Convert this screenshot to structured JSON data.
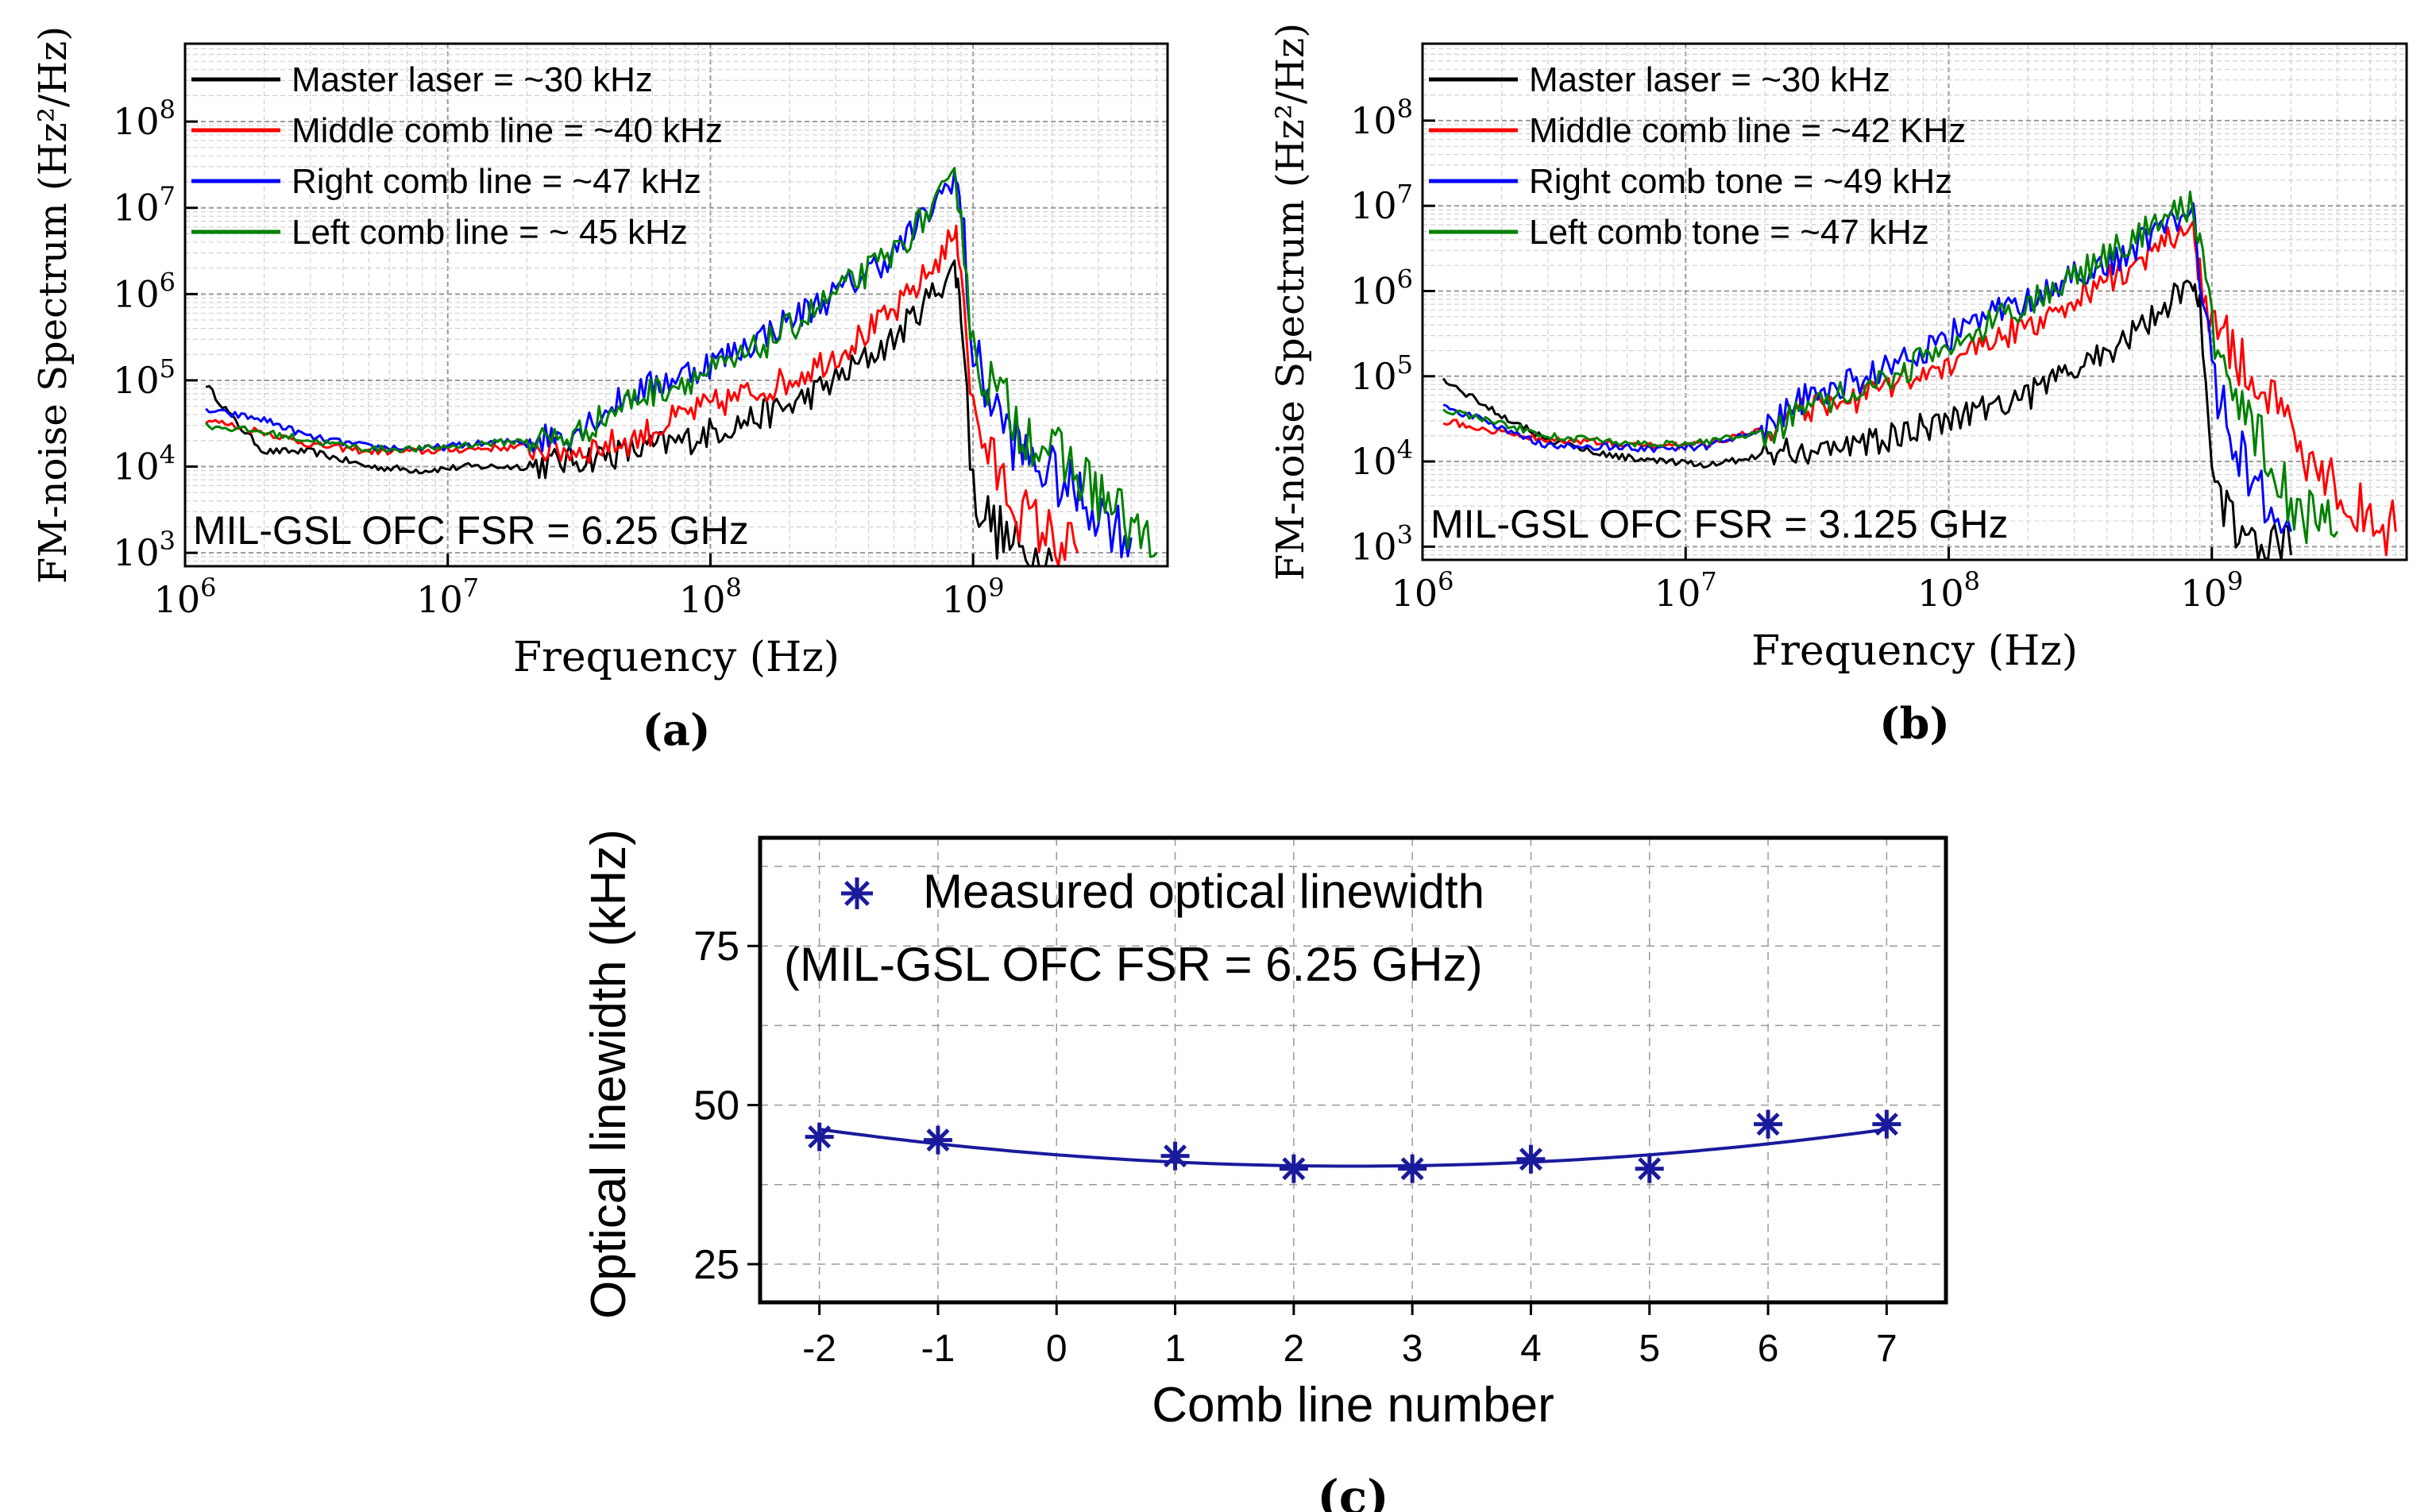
{
  "chart_data": [
    {
      "panel_label": "(a)",
      "type": "line",
      "x_scale": "log",
      "y_scale": "log",
      "xlabel": "Frequency (Hz)",
      "ylabel": "FM-noise Spectrum (Hz²/Hz)",
      "xlim": [
        1000000,
        5500000000
      ],
      "ylim": [
        700,
        800000000
      ],
      "x_ticks": [
        1000000,
        10000000,
        100000000,
        1000000000
      ],
      "x_tick_labels": [
        {
          "base": "10",
          "exp": "6"
        },
        {
          "base": "10",
          "exp": "7"
        },
        {
          "base": "10",
          "exp": "8"
        },
        {
          "base": "10",
          "exp": "9"
        }
      ],
      "y_ticks": [
        1000,
        10000,
        100000,
        1000000,
        10000000,
        100000000
      ],
      "y_tick_labels": [
        {
          "base": "10",
          "exp": "3"
        },
        {
          "base": "10",
          "exp": "4"
        },
        {
          "base": "10",
          "exp": "5"
        },
        {
          "base": "10",
          "exp": "6"
        },
        {
          "base": "10",
          "exp": "7"
        },
        {
          "base": "10",
          "exp": "8"
        }
      ],
      "grid": true,
      "legend_position": "top-left",
      "annotation": "MIL-GSL OFC  FSR = 6.25 GHz",
      "series": [
        {
          "name": "Master laser = ~30 kHz",
          "color": "#000000",
          "x": [
            1200000,
            1600000,
            2000000,
            3000000,
            5000000,
            8000000,
            12000000,
            20000000,
            30000000,
            50000000,
            80000000,
            120000000,
            200000000,
            300000000,
            500000000,
            700000000,
            850000000,
            900000000,
            1000000000,
            1200000000,
            1500000000,
            2000000000
          ],
          "y": [
            90000,
            30000,
            15000,
            15000,
            10000,
            9000,
            10000,
            10000,
            12000,
            15000,
            20000,
            30000,
            50000,
            100000,
            300000,
            1000000,
            2000000,
            800000,
            5000,
            2000,
            1000,
            800
          ]
        },
        {
          "name": "Middle comb line = ~40 kHz",
          "color": "#ff0000",
          "x": [
            1200000,
            2000000,
            3000000,
            5000000,
            8000000,
            12000000,
            20000000,
            30000000,
            50000000,
            80000000,
            120000000,
            200000000,
            300000000,
            500000000,
            700000000,
            850000000,
            900000000,
            1000000000,
            1200000000,
            1500000000,
            2000000000,
            2500000000
          ],
          "y": [
            35000,
            25000,
            18000,
            15000,
            15000,
            16000,
            17000,
            15000,
            20000,
            40000,
            60000,
            100000,
            200000,
            600000,
            2000000,
            5000000,
            2500000,
            40000,
            10000,
            3000,
            1500,
            1000
          ]
        },
        {
          "name": "Right comb line = ~47 kHz",
          "color": "#0000ff",
          "x": [
            1200000,
            2000000,
            3000000,
            5000000,
            8000000,
            12000000,
            20000000,
            30000000,
            50000000,
            80000000,
            120000000,
            200000000,
            300000000,
            500000000,
            700000000,
            850000000,
            900000000,
            1000000000,
            1200000000,
            1500000000,
            2000000000,
            3000000000,
            4000000000
          ],
          "y": [
            45000,
            35000,
            22000,
            17000,
            16000,
            18000,
            20000,
            25000,
            70000,
            120000,
            200000,
            500000,
            1000000,
            3000000,
            10000000,
            25000000,
            10000000,
            200000,
            50000,
            15000,
            8000,
            3000,
            1500
          ]
        },
        {
          "name": "Left comb line = ~ 45 kHz",
          "color": "#008000",
          "x": [
            1200000,
            2000000,
            3000000,
            5000000,
            8000000,
            12000000,
            20000000,
            30000000,
            50000000,
            80000000,
            120000000,
            200000000,
            300000000,
            500000000,
            700000000,
            850000000,
            900000000,
            1000000000,
            1200000000,
            1500000000,
            2000000000,
            3000000000,
            4000000000,
            5000000000
          ],
          "y": [
            30000,
            25000,
            20000,
            16000,
            16000,
            18000,
            20000,
            22000,
            60000,
            100000,
            150000,
            400000,
            1000000,
            3000000,
            10000000,
            20000000,
            10000000,
            200000,
            80000,
            30000,
            15000,
            5000,
            2000,
            1000
          ]
        }
      ]
    },
    {
      "panel_label": "(b)",
      "type": "line",
      "x_scale": "log",
      "y_scale": "log",
      "xlabel": "Frequency (Hz)",
      "ylabel": "FM-noise Spectrum (Hz²/Hz)",
      "xlim": [
        1000000,
        5500000000
      ],
      "ylim": [
        700,
        800000000
      ],
      "x_ticks": [
        1000000,
        10000000,
        100000000,
        1000000000
      ],
      "x_tick_labels": [
        {
          "base": "10",
          "exp": "6"
        },
        {
          "base": "10",
          "exp": "7"
        },
        {
          "base": "10",
          "exp": "8"
        },
        {
          "base": "10",
          "exp": "9"
        }
      ],
      "y_ticks": [
        1000,
        10000,
        100000,
        1000000,
        10000000,
        100000000
      ],
      "y_tick_labels": [
        {
          "base": "10",
          "exp": "3"
        },
        {
          "base": "10",
          "exp": "4"
        },
        {
          "base": "10",
          "exp": "5"
        },
        {
          "base": "10",
          "exp": "6"
        },
        {
          "base": "10",
          "exp": "7"
        },
        {
          "base": "10",
          "exp": "8"
        }
      ],
      "grid": true,
      "legend_position": "top-left",
      "annotation": "MIL-GSL OFC  FSR = 3.125 GHz",
      "series": [
        {
          "name": "Master laser = ~30 kHz",
          "color": "#000000",
          "x": [
            1200000,
            2000000,
            3000000,
            5000000,
            8000000,
            12000000,
            20000000,
            30000000,
            50000000,
            80000000,
            120000000,
            200000000,
            300000000,
            500000000,
            700000000,
            850000000,
            900000000,
            1000000000,
            1200000000,
            1500000000,
            2000000000
          ],
          "y": [
            90000,
            35000,
            18000,
            12000,
            10000,
            9000,
            12000,
            14000,
            16000,
            25000,
            40000,
            60000,
            120000,
            300000,
            800000,
            1500000,
            600000,
            5000,
            2000,
            1000,
            800
          ]
        },
        {
          "name": "Middle comb line = ~42 KHz",
          "color": "#ff0000",
          "x": [
            1200000,
            2000000,
            3000000,
            5000000,
            8000000,
            12000000,
            20000000,
            30000000,
            50000000,
            80000000,
            120000000,
            200000000,
            300000000,
            500000000,
            700000000,
            850000000,
            900000000,
            1000000000,
            1200000000,
            1500000000,
            2000000000,
            3000000000,
            4000000000,
            5000000000
          ],
          "y": [
            30000,
            22000,
            18000,
            17000,
            15000,
            16000,
            25000,
            40000,
            60000,
            100000,
            200000,
            400000,
            800000,
            2000000,
            4000000,
            5000000,
            1500000,
            500000,
            200000,
            80000,
            20000,
            5000,
            2000,
            1500
          ]
        },
        {
          "name": "Right comb tone = ~49 kHz",
          "color": "#0000ff",
          "x": [
            1200000,
            2000000,
            3000000,
            5000000,
            8000000,
            12000000,
            20000000,
            30000000,
            50000000,
            80000000,
            120000000,
            200000000,
            300000000,
            500000000,
            700000000,
            850000000,
            900000000,
            1000000000,
            1200000000,
            1500000000,
            2000000000
          ],
          "y": [
            45000,
            25000,
            15000,
            15000,
            14000,
            15000,
            25000,
            60000,
            100000,
            200000,
            400000,
            800000,
            1500000,
            3000000,
            7000000,
            8000000,
            2000000,
            100000,
            20000,
            5000,
            1500
          ]
        },
        {
          "name": "Left comb tone = ~47 kHz",
          "color": "#008000",
          "x": [
            1200000,
            2000000,
            3000000,
            5000000,
            8000000,
            12000000,
            20000000,
            30000000,
            50000000,
            80000000,
            120000000,
            200000000,
            300000000,
            500000000,
            700000000,
            850000000,
            900000000,
            1000000000,
            1200000000,
            1500000000,
            2000000000,
            3000000000
          ],
          "y": [
            40000,
            28000,
            20000,
            17000,
            16000,
            17000,
            22000,
            40000,
            80000,
            150000,
            300000,
            700000,
            1500000,
            4000000,
            9000000,
            10000000,
            3000000,
            300000,
            100000,
            20000,
            3000,
            1500
          ]
        }
      ]
    },
    {
      "panel_label": "(c)",
      "type": "scatter",
      "xlabel": "Comb line number",
      "ylabel": "Optical linewidth (kHz)",
      "xlim": [
        -2.5,
        7.5
      ],
      "ylim": [
        19,
        92
      ],
      "x_ticks": [
        -2,
        -1,
        0,
        1,
        2,
        3,
        4,
        5,
        6,
        7
      ],
      "x_tick_labels": [
        "-2",
        "-1",
        "0",
        "1",
        "2",
        "3",
        "4",
        "5",
        "6",
        "7"
      ],
      "y_ticks": [
        25,
        50,
        75
      ],
      "y_tick_labels": [
        "25",
        "50",
        "75"
      ],
      "grid": true,
      "legend_position": "top-left",
      "legend_subtitle": "(MIL-GSL OFC FSR = 6.25 GHz)",
      "series": [
        {
          "name": "Measured optical linewidth",
          "color": "#1a1a9c",
          "x": [
            -2,
            -1,
            1,
            2,
            3,
            4,
            5,
            6,
            7
          ],
          "y": [
            45,
            44.5,
            42,
            40,
            40,
            41.5,
            40,
            47,
            47
          ],
          "fit": [
            46.2,
            0,
            -1.8,
            0,
            0.52
          ]
        }
      ]
    }
  ]
}
